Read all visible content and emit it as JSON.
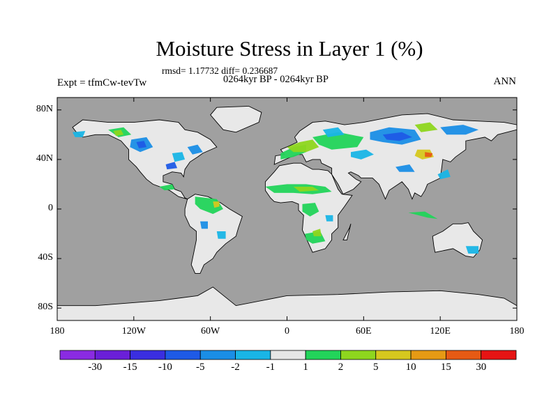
{
  "title": "Moisture Stress in Layer 1 (%)",
  "stats": "rmsd= 1.17732 diff= 0.236687",
  "period": "0264kyr BP - 0264kyr BP",
  "experiment": "Expt = tfmCw-tevTw",
  "season": "ANN",
  "map": {
    "ocean_color": "#a0a0a0",
    "land_color": "#e8e8e8",
    "lon_ticks": [
      {
        "lon": -180,
        "label": "180"
      },
      {
        "lon": -120,
        "label": "120W"
      },
      {
        "lon": -60,
        "label": "60W"
      },
      {
        "lon": 0,
        "label": "0"
      },
      {
        "lon": 60,
        "label": "60E"
      },
      {
        "lon": 120,
        "label": "120E"
      },
      {
        "lon": 180,
        "label": "180"
      }
    ],
    "lat_ticks": [
      {
        "lat": 80,
        "label": "80N"
      },
      {
        "lat": 40,
        "label": "40N"
      },
      {
        "lat": 0,
        "label": "0"
      },
      {
        "lat": -40,
        "label": "40S"
      },
      {
        "lat": -80,
        "label": "80S"
      }
    ]
  },
  "colorbar": {
    "colors": [
      "#8a2be2",
      "#6a1fd8",
      "#3a2ee0",
      "#1e5ae6",
      "#1a8ee6",
      "#19b5e6",
      "#e6e6e6",
      "#22d45a",
      "#8ed61e",
      "#d6c81e",
      "#e69a14",
      "#e65a14",
      "#e61414"
    ],
    "labels": [
      "-30",
      "-15",
      "-10",
      "-5",
      "-2",
      "-1",
      "1",
      "2",
      "5",
      "10",
      "15",
      "30"
    ]
  }
}
